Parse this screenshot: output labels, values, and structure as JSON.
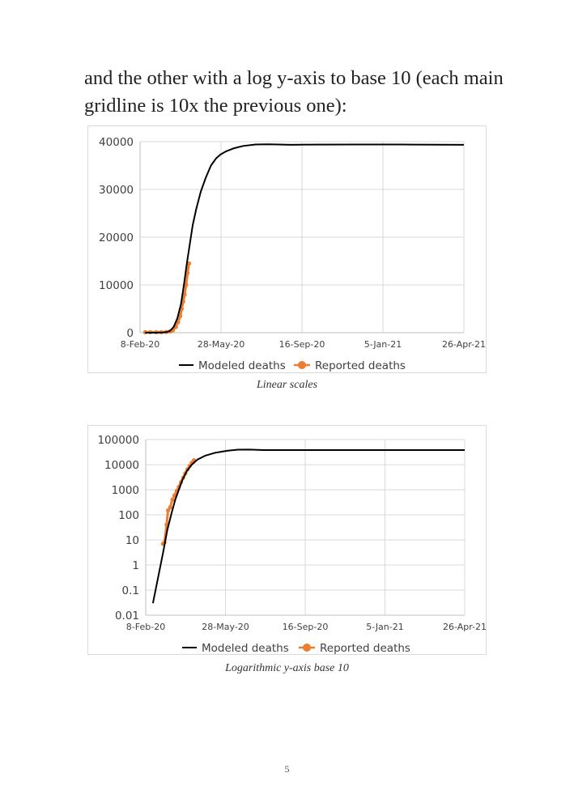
{
  "intro_text": "and the other with a log y-axis to base 10 (each main gridline is 10x the previous one):",
  "page_number": "5",
  "colors": {
    "modeled": "#000000",
    "reported": "#ed7d31",
    "grid": "#d9d9d9",
    "tick_text": "#404040"
  },
  "chart_data": [
    {
      "type": "line",
      "caption": "Linear scales",
      "xlabel": "",
      "ylabel": "",
      "y_scale": "linear",
      "x_tick_labels": [
        "8-Feb-20",
        "28-May-20",
        "16-Sep-20",
        "5-Jan-21",
        "26-Apr-21"
      ],
      "x_range": [
        "2020-02-08",
        "2021-04-26"
      ],
      "y_tick_labels": [
        "0",
        "10000",
        "20000",
        "30000",
        "40000"
      ],
      "ylim": [
        0,
        40000
      ],
      "grid": true,
      "legend": "bottom",
      "legend_entries": [
        "Modeled deaths",
        "Reported deaths"
      ],
      "series": [
        {
          "name": "Modeled deaths",
          "style": "line",
          "x": [
            "2020-02-15",
            "2020-03-01",
            "2020-03-10",
            "2020-03-16",
            "2020-03-20",
            "2020-03-25",
            "2020-03-30",
            "2020-04-04",
            "2020-04-08",
            "2020-04-12",
            "2020-04-16",
            "2020-04-20",
            "2020-04-25",
            "2020-05-01",
            "2020-05-08",
            "2020-05-15",
            "2020-05-22",
            "2020-05-28",
            "2020-06-05",
            "2020-06-15",
            "2020-06-28",
            "2020-07-15",
            "2020-08-01",
            "2020-08-15",
            "2020-09-01",
            "2020-10-01",
            "2020-12-01",
            "2021-02-01",
            "2021-04-26"
          ],
          "values": [
            0,
            5,
            50,
            150,
            400,
            1200,
            3000,
            6000,
            10000,
            14500,
            18500,
            22500,
            26000,
            29500,
            32500,
            35000,
            36500,
            37300,
            38000,
            38600,
            39100,
            39400,
            39450,
            39400,
            39350,
            39380,
            39400,
            39400,
            39350
          ]
        },
        {
          "name": "Reported deaths",
          "style": "markers",
          "x": [
            "2020-02-15",
            "2020-02-22",
            "2020-03-01",
            "2020-03-08",
            "2020-03-15",
            "2020-03-20",
            "2020-03-24",
            "2020-03-28",
            "2020-03-31",
            "2020-04-03",
            "2020-04-05",
            "2020-04-07",
            "2020-04-09",
            "2020-04-11",
            "2020-04-13",
            "2020-04-15"
          ],
          "values": [
            100,
            100,
            100,
            120,
            150,
            250,
            500,
            1200,
            2200,
            3500,
            5000,
            6500,
            8000,
            10000,
            12500,
            14500
          ]
        }
      ]
    },
    {
      "type": "line",
      "caption": "Logarithmic y-axis base 10",
      "xlabel": "",
      "ylabel": "",
      "y_scale": "log10",
      "x_tick_labels": [
        "8-Feb-20",
        "28-May-20",
        "16-Sep-20",
        "5-Jan-21",
        "26-Apr-21"
      ],
      "x_range": [
        "2020-02-08",
        "2021-04-26"
      ],
      "y_tick_labels": [
        "0.01",
        "0.1",
        "1",
        "10",
        "100",
        "1000",
        "10000",
        "100000"
      ],
      "ylim": [
        0.01,
        100000
      ],
      "grid": true,
      "legend": "bottom",
      "legend_entries": [
        "Modeled deaths",
        "Reported deaths"
      ],
      "series": [
        {
          "name": "Modeled deaths",
          "style": "line",
          "x": [
            "2020-02-18",
            "2020-02-25",
            "2020-03-03",
            "2020-03-09",
            "2020-03-15",
            "2020-03-20",
            "2020-03-25",
            "2020-03-30",
            "2020-04-05",
            "2020-04-12",
            "2020-04-20",
            "2020-05-01",
            "2020-05-15",
            "2020-06-01",
            "2020-06-15",
            "2020-07-01",
            "2020-07-20",
            "2021-04-26"
          ],
          "values": [
            0.03,
            0.3,
            3,
            25,
            120,
            400,
            1000,
            2500,
            5500,
            10000,
            16000,
            23000,
            30000,
            36000,
            39500,
            40000,
            38000,
            38000
          ]
        },
        {
          "name": "Reported deaths",
          "style": "markers",
          "x": [
            "2020-03-03",
            "2020-03-05",
            "2020-03-08",
            "2020-03-10",
            "2020-03-13",
            "2020-03-16",
            "2020-03-19",
            "2020-03-22",
            "2020-03-25",
            "2020-03-28",
            "2020-03-31",
            "2020-04-03",
            "2020-04-06",
            "2020-04-09",
            "2020-04-12",
            "2020-04-15"
          ],
          "values": [
            7,
            8,
            40,
            150,
            200,
            400,
            600,
            900,
            1300,
            2000,
            3000,
            4500,
            6500,
            9000,
            12000,
            15000
          ]
        }
      ]
    }
  ]
}
